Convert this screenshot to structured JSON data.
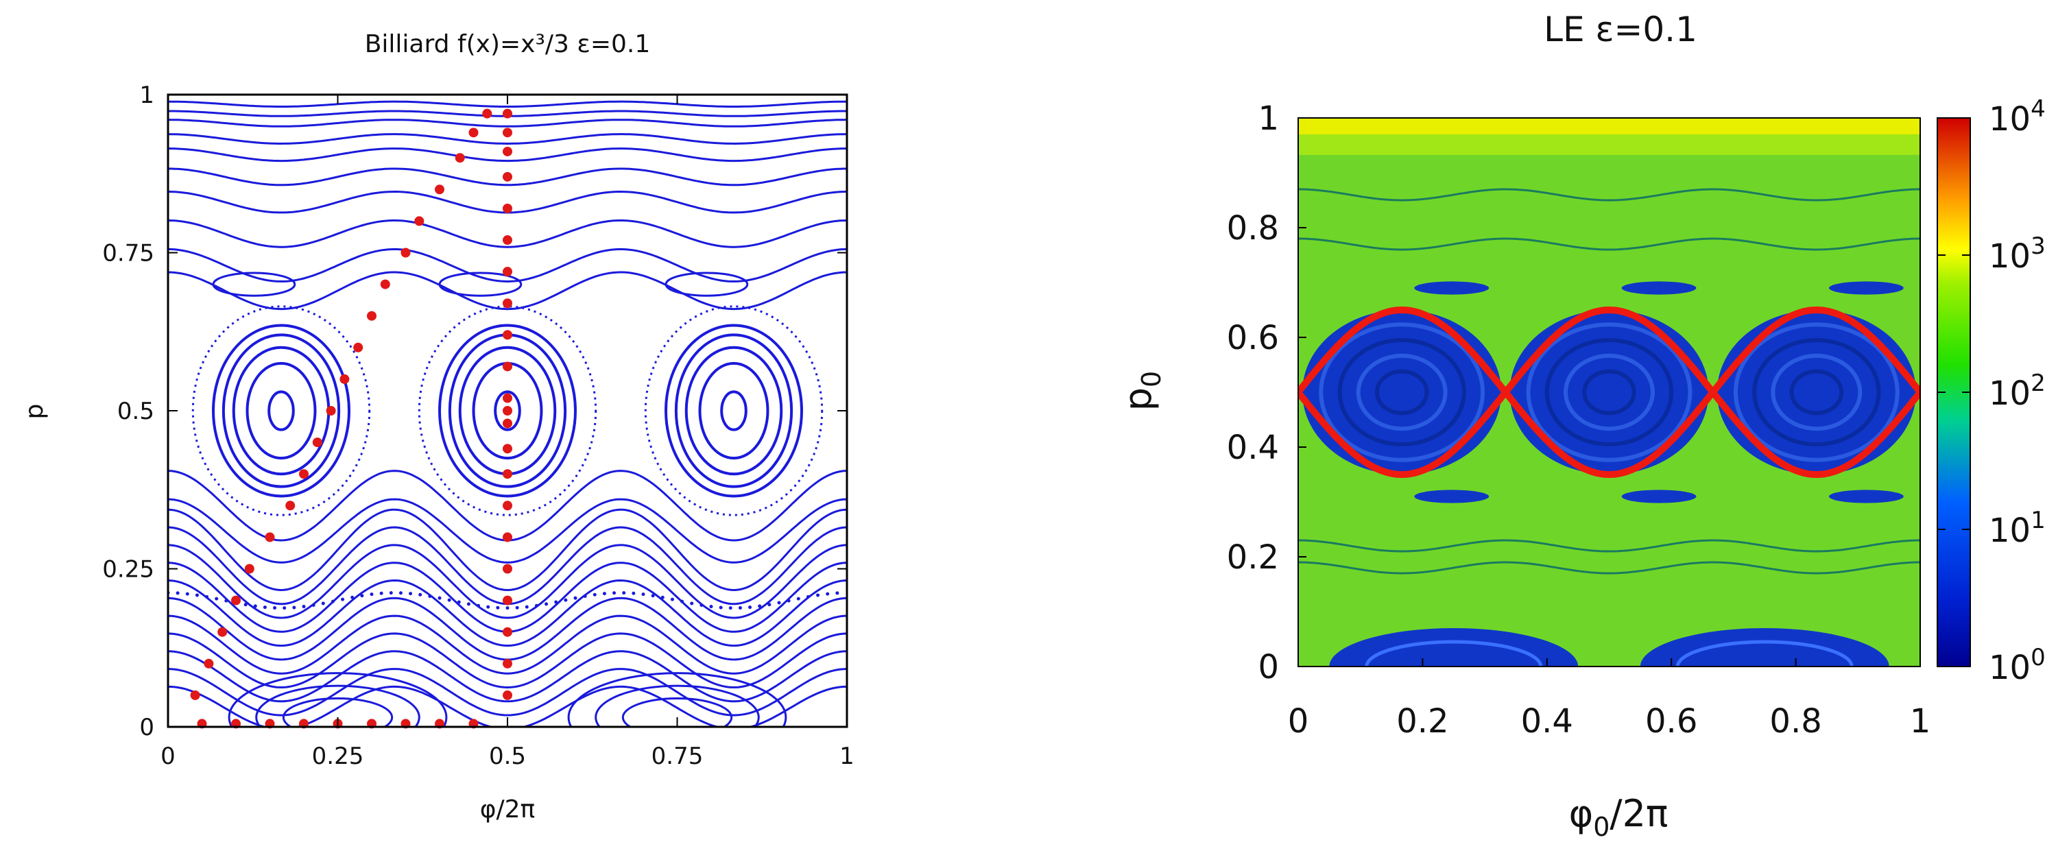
{
  "chart_data": [
    {
      "type": "scatter",
      "title": "Billiard f(x)=x³/3   ε=0.1",
      "xlabel": "φ/2π",
      "ylabel": "p",
      "xlim": [
        0,
        1
      ],
      "ylim": [
        0,
        1
      ],
      "x_ticks": [
        "0",
        "0.25",
        "0.5",
        "0.75",
        "1"
      ],
      "y_ticks": [
        "0",
        "0.25",
        "0.5",
        "0.75",
        "1"
      ],
      "grid": false,
      "colors": {
        "orbits": "#1a1adc",
        "highlight": "#e01818"
      },
      "series": [
        {
          "values": {
            "x": [
              0.5,
              0.5,
              0.5,
              0.5,
              0.5,
              0.5,
              0.5,
              0.5,
              0.5,
              0.5,
              0.5,
              0.5,
              0.5,
              0.5,
              0.5,
              0.5,
              0.5,
              0.5,
              0.5,
              0.5,
              0.5,
              0.5
            ],
            "y": [
              0.05,
              0.1,
              0.15,
              0.2,
              0.25,
              0.3,
              0.35,
              0.4,
              0.44,
              0.48,
              0.5,
              0.52,
              0.57,
              0.62,
              0.67,
              0.72,
              0.77,
              0.82,
              0.87,
              0.91,
              0.94,
              0.97
            ]
          }
        },
        {
          "values": {
            "x": [
              0.04,
              0.06,
              0.08,
              0.1,
              0.12,
              0.15,
              0.18,
              0.2,
              0.22,
              0.24,
              0.26,
              0.28,
              0.3,
              0.32,
              0.35,
              0.37,
              0.4,
              0.43,
              0.45,
              0.47
            ],
            "y": [
              0.05,
              0.1,
              0.15,
              0.2,
              0.25,
              0.3,
              0.35,
              0.4,
              0.45,
              0.5,
              0.55,
              0.6,
              0.65,
              0.7,
              0.75,
              0.8,
              0.85,
              0.9,
              0.94,
              0.97
            ]
          }
        },
        {
          "values": {
            "x": [
              0.05,
              0.1,
              0.15,
              0.2,
              0.25,
              0.3,
              0.35,
              0.4,
              0.45
            ],
            "y": [
              0.005,
              0.005,
              0.005,
              0.005,
              0.005,
              0.005,
              0.005,
              0.005,
              0.005
            ]
          }
        }
      ]
    },
    {
      "type": "heatmap",
      "title": "LE  ε=0.1",
      "xlabel": "φ0/2π",
      "ylabel": "p0",
      "xlim": [
        0,
        1
      ],
      "ylim": [
        0,
        1
      ],
      "x_ticks": [
        "0",
        "0.2",
        "0.4",
        "0.6",
        "0.8",
        "1"
      ],
      "y_ticks": [
        "0",
        "0.2",
        "0.4",
        "0.6",
        "0.8",
        "1"
      ],
      "colorbar": {
        "scale": "log",
        "range": [
          1,
          10000
        ],
        "ticks": [
          {
            "base": "10",
            "exp": "0"
          },
          {
            "base": "10",
            "exp": "1"
          },
          {
            "base": "10",
            "exp": "2"
          },
          {
            "base": "10",
            "exp": "3"
          },
          {
            "base": "10",
            "exp": "4"
          }
        ],
        "colors": [
          "#000090",
          "#0040ff",
          "#00c8ff",
          "#00e000",
          "#a0ff00",
          "#ffff00",
          "#ff8000",
          "#e00000"
        ]
      },
      "colors": {
        "background": "#6fd629",
        "island": "#1036c8",
        "separatrix": "#ee1a10"
      }
    }
  ]
}
